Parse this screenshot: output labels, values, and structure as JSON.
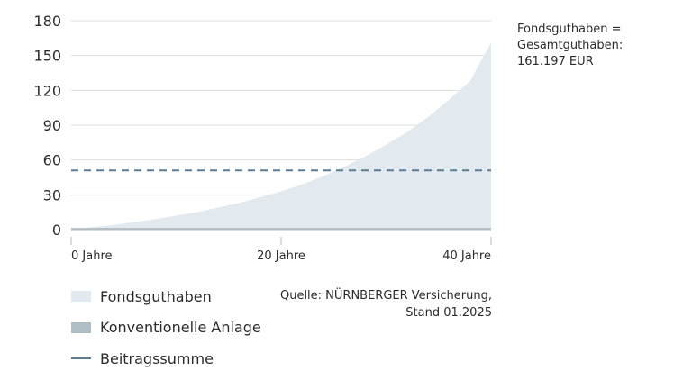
{
  "chart_data": {
    "type": "area",
    "title": "",
    "xlabel": "",
    "ylabel": "",
    "x_ticks": [
      "0 Jahre",
      "20 Jahre",
      "40 Jahre"
    ],
    "xlim": [
      0,
      40
    ],
    "ylim": [
      0,
      180
    ],
    "y_ticks": [
      0,
      30,
      60,
      90,
      120,
      150,
      180
    ],
    "grid": true,
    "legend_placement": "bottom-left",
    "x": [
      0,
      4,
      8,
      12,
      16,
      20,
      22,
      24,
      26,
      28,
      30,
      32,
      34,
      36,
      38,
      40
    ],
    "series": [
      {
        "name": "Fondsguthaben",
        "kind": "area",
        "color": "#e2e9ef",
        "values": [
          0,
          4,
          9,
          15,
          23,
          33,
          39,
          46,
          54,
          63,
          73,
          84,
          97,
          112,
          128,
          161.197
        ]
      },
      {
        "name": "Konventionelle Anlage",
        "kind": "area",
        "color": "#b0bec5",
        "values": [
          1.5,
          1.5,
          1.5,
          1.5,
          1.5,
          1.5,
          1.5,
          1.5,
          1.5,
          1.5,
          1.5,
          1.5,
          1.5,
          1.5,
          1.5,
          1.5
        ]
      },
      {
        "name": "Beitragssumme",
        "kind": "dashed-line",
        "color": "#5b7d96",
        "values": [
          51,
          51,
          51,
          51,
          51,
          51,
          51,
          51,
          51,
          51,
          51,
          51,
          51,
          51,
          51,
          51
        ]
      }
    ]
  },
  "annotation": {
    "line1": "Fondsguthaben =",
    "line2": "Gesamtguthaben:",
    "line3": "161.197 EUR"
  },
  "legend": {
    "items": [
      {
        "label": "Fondsguthaben",
        "swatch": "area-light"
      },
      {
        "label": "Konventionelle Anlage",
        "swatch": "area-gray"
      },
      {
        "label": "Beitragssumme",
        "swatch": "line"
      }
    ]
  },
  "source": {
    "line1": "Quelle: NÜRNBERGER Versicherung,",
    "line2": "Stand 01.2025"
  },
  "colors": {
    "axis": "#b7b7b7",
    "grid": "#dedede",
    "text": "#2b2b2b"
  }
}
